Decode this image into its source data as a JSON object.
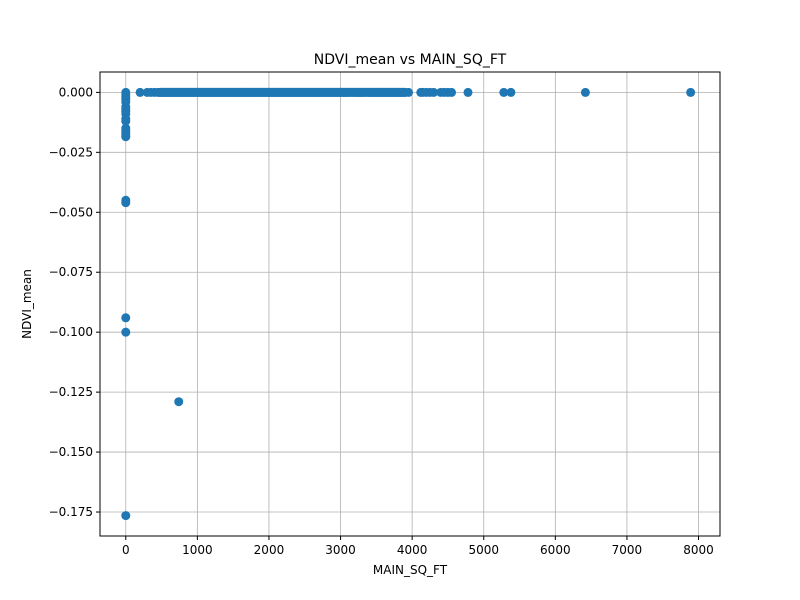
{
  "chart_data": {
    "type": "scatter",
    "title": "NDVI_mean vs MAIN_SQ_FT",
    "xlabel": "MAIN_SQ_FT",
    "ylabel": "NDVI_mean",
    "xlim": [
      -360,
      8300
    ],
    "ylim": [
      -0.185,
      0.0085
    ],
    "x_ticks": [
      0,
      1000,
      2000,
      3000,
      4000,
      5000,
      6000,
      7000,
      8000
    ],
    "x_tick_labels": [
      "0",
      "1000",
      "2000",
      "3000",
      "4000",
      "5000",
      "6000",
      "7000",
      "8000"
    ],
    "y_ticks": [
      0.0,
      -0.025,
      -0.05,
      -0.075,
      -0.1,
      -0.125,
      -0.15,
      -0.175
    ],
    "y_tick_labels": [
      "0.000",
      "−0.025",
      "−0.050",
      "−0.075",
      "−0.100",
      "−0.125",
      "−0.150",
      "−0.175"
    ],
    "grid": true,
    "marker_color": "#1f77b4",
    "points": {
      "x": [
        0,
        0,
        0,
        0,
        0,
        0,
        0,
        0,
        0,
        0,
        0,
        0,
        0,
        0,
        0,
        0,
        0,
        0,
        0,
        0,
        0,
        740,
        200,
        300,
        350,
        400,
        450,
        480,
        520,
        560,
        600,
        650,
        700,
        750,
        800,
        850,
        900,
        950,
        1000,
        1050,
        1100,
        1150,
        1200,
        1250,
        1300,
        1350,
        1400,
        1450,
        1500,
        1550,
        1600,
        1650,
        1700,
        1750,
        1800,
        1850,
        1900,
        1950,
        2000,
        2050,
        2100,
        2150,
        2200,
        2250,
        2300,
        2350,
        2400,
        2450,
        2500,
        2550,
        2600,
        2650,
        2700,
        2750,
        2800,
        2850,
        2900,
        2950,
        3000,
        3050,
        3100,
        3200,
        3250,
        3300,
        3400,
        3450,
        3500,
        3550,
        3600,
        3650,
        3700,
        3750,
        3800,
        3850,
        3900,
        3950,
        4120,
        4150,
        4200,
        4250,
        4300,
        4400,
        4450,
        4500,
        4550,
        4780,
        5280,
        5380,
        6420,
        7890
      ],
      "y": [
        0.0,
        -0.001,
        -0.002,
        -0.004,
        -0.006,
        -0.007,
        -0.008,
        -0.009,
        -0.011,
        -0.012,
        -0.015,
        -0.016,
        -0.017,
        -0.018,
        -0.0185,
        -0.045,
        -0.046,
        -0.094,
        -0.1,
        -0.1765,
        -0.003,
        -0.129,
        0.0,
        0.0,
        0.0,
        0.0,
        0.0,
        0.0,
        0.0,
        0.0,
        0.0,
        0.0,
        0.0,
        0.0,
        0.0,
        0.0,
        0.0,
        0.0,
        0.0,
        0.0,
        0.0,
        0.0,
        0.0,
        0.0,
        0.0,
        0.0,
        0.0,
        0.0,
        0.0,
        0.0,
        0.0,
        0.0,
        0.0,
        0.0,
        0.0,
        0.0,
        0.0,
        0.0,
        0.0,
        0.0,
        0.0,
        0.0,
        0.0,
        0.0,
        0.0,
        0.0,
        0.0,
        0.0,
        0.0,
        0.0,
        0.0,
        0.0,
        0.0,
        0.0,
        0.0,
        0.0,
        0.0,
        0.0,
        0.0,
        0.0,
        0.0,
        0.0,
        0.0,
        0.0,
        0.0,
        0.0,
        0.0,
        0.0,
        0.0,
        0.0,
        0.0,
        0.0,
        0.0,
        0.0,
        0.0,
        0.0,
        0.0,
        0.0,
        0.0,
        0.0,
        0.0,
        0.0,
        0.0,
        0.0,
        0.0,
        0.0,
        0.0,
        0.0,
        0.0,
        0.0
      ]
    }
  }
}
